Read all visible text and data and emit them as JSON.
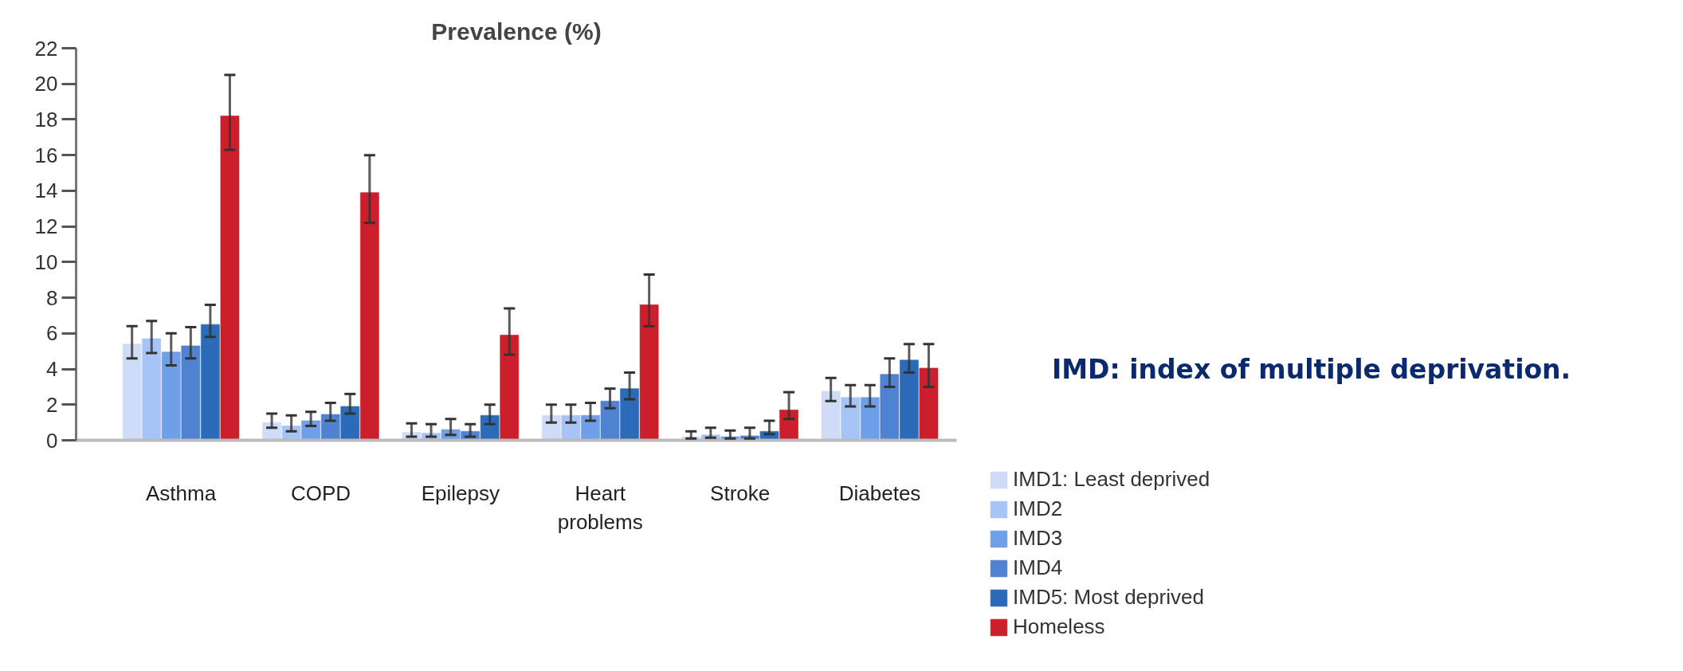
{
  "chart_data": {
    "type": "bar",
    "title": "Prevalence (%)",
    "categories": [
      "Asthma",
      "COPD",
      "Epilepsy",
      "Heart problems",
      "Stroke",
      "Diabetes"
    ],
    "series": [
      {
        "name": "IMD1: Least deprived",
        "color": "#cfdcf7",
        "values": [
          5.4,
          1.0,
          0.45,
          1.4,
          0.2,
          2.75
        ],
        "errors": [
          [
            4.6,
            6.4
          ],
          [
            0.7,
            1.5
          ],
          [
            0.2,
            0.95
          ],
          [
            1.0,
            2.0
          ],
          [
            0.1,
            0.5
          ],
          [
            2.2,
            3.5
          ]
        ]
      },
      {
        "name": "IMD2",
        "color": "#a6c4f5",
        "values": [
          5.7,
          0.8,
          0.4,
          1.4,
          0.3,
          2.4
        ],
        "errors": [
          [
            4.9,
            6.7
          ],
          [
            0.5,
            1.4
          ],
          [
            0.2,
            0.9
          ],
          [
            1.0,
            2.0
          ],
          [
            0.15,
            0.7
          ],
          [
            1.9,
            3.1
          ]
        ]
      },
      {
        "name": "IMD3",
        "color": "#6f9fe8",
        "values": [
          4.95,
          1.1,
          0.6,
          1.4,
          0.2,
          2.4
        ],
        "errors": [
          [
            4.2,
            6.0
          ],
          [
            0.8,
            1.6
          ],
          [
            0.3,
            1.2
          ],
          [
            1.1,
            2.1
          ],
          [
            0.1,
            0.55
          ],
          [
            1.9,
            3.1
          ]
        ]
      },
      {
        "name": "IMD4",
        "color": "#4f82d0",
        "values": [
          5.3,
          1.45,
          0.5,
          2.2,
          0.25,
          3.7
        ],
        "errors": [
          [
            4.6,
            6.35
          ],
          [
            1.1,
            2.1
          ],
          [
            0.2,
            0.9
          ],
          [
            1.8,
            2.9
          ],
          [
            0.1,
            0.7
          ],
          [
            3.0,
            4.6
          ]
        ]
      },
      {
        "name": "IMD5: Most deprived",
        "color": "#2a6cb8",
        "values": [
          6.5,
          1.9,
          1.4,
          2.9,
          0.5,
          4.5
        ],
        "errors": [
          [
            5.8,
            7.6
          ],
          [
            1.5,
            2.6
          ],
          [
            0.9,
            2.0
          ],
          [
            2.3,
            3.8
          ],
          [
            0.35,
            1.1
          ],
          [
            3.8,
            5.4
          ]
        ]
      },
      {
        "name": "Homeless",
        "color": "#cc1f2b",
        "values": [
          18.2,
          13.9,
          5.9,
          7.6,
          1.7,
          4.05
        ],
        "errors": [
          [
            16.3,
            20.5
          ],
          [
            12.2,
            16.0
          ],
          [
            4.8,
            7.4
          ],
          [
            6.4,
            9.3
          ],
          [
            1.2,
            2.7
          ],
          [
            3.0,
            5.4
          ]
        ]
      }
    ],
    "ylim": [
      0,
      22
    ],
    "yticks": [
      0,
      2,
      4,
      6,
      8,
      10,
      12,
      14,
      16,
      18,
      20,
      22
    ],
    "grid": false,
    "legend": "bottom right",
    "annotations": [
      "IMD: index of multiple deprivation."
    ]
  }
}
